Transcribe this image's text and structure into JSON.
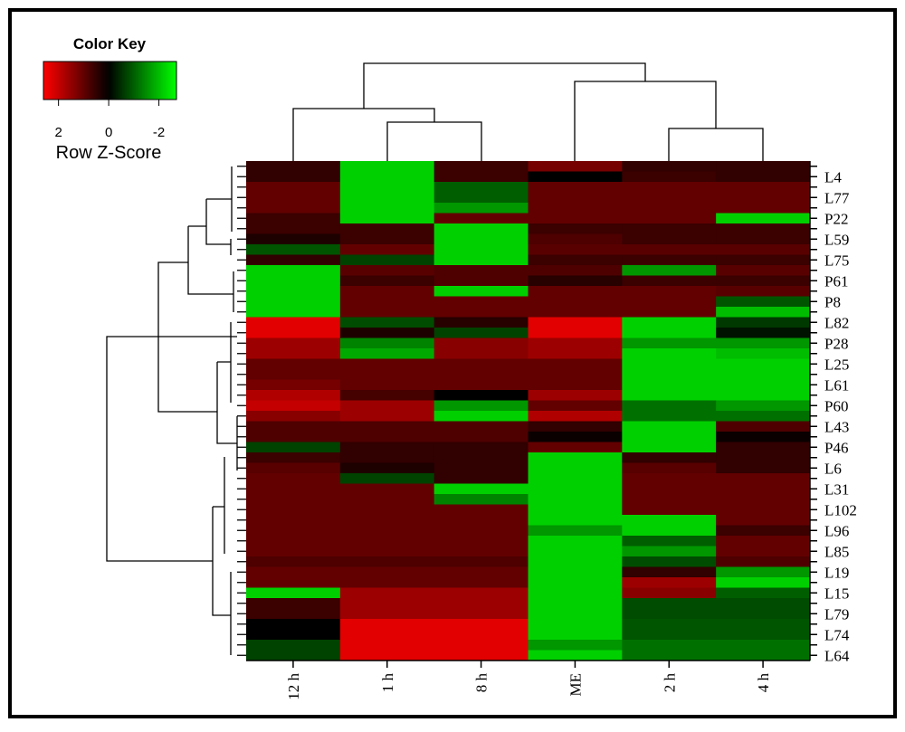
{
  "chart_data": {
    "type": "heatmap",
    "title": "Color Key",
    "key_label": "Row Z-Score",
    "zlim": [
      2.6,
      -2.7
    ],
    "zticks": [
      2,
      0,
      -2
    ],
    "high_color": "#ff0000",
    "mid_color": "#000000",
    "low_color": "#00ff00",
    "columns": [
      "12 h",
      "1 h",
      "8 h",
      "ME",
      "2 h",
      "4 h"
    ],
    "rows": [
      null,
      "L4",
      null,
      "L77",
      null,
      "P22",
      null,
      "L59",
      null,
      "L75",
      null,
      "P61",
      null,
      "P8",
      null,
      "L82",
      null,
      "P28",
      null,
      "L25",
      null,
      "L61",
      null,
      "P60",
      null,
      "L43",
      null,
      "P46",
      null,
      "L6",
      null,
      "L31",
      null,
      "L102",
      null,
      "L96",
      null,
      "L85",
      null,
      "L19",
      null,
      "L15",
      null,
      "L79",
      null,
      "L74",
      null,
      "L64"
    ],
    "values": [
      [
        0.5,
        -2.2,
        0.6,
        1.2,
        0.5,
        0.5
      ],
      [
        0.5,
        -2.2,
        0.6,
        0.0,
        0.6,
        0.5
      ],
      [
        1.0,
        -2.2,
        -1.0,
        1.0,
        1.0,
        1.0
      ],
      [
        1.0,
        -2.2,
        -1.0,
        1.0,
        1.0,
        1.0
      ],
      [
        1.0,
        -2.2,
        -1.6,
        1.0,
        1.0,
        1.0
      ],
      [
        0.6,
        -2.2,
        1.0,
        1.0,
        1.0,
        -2.2
      ],
      [
        0.6,
        0.6,
        -2.2,
        0.6,
        0.6,
        0.6
      ],
      [
        0.3,
        0.6,
        -2.2,
        0.8,
        0.6,
        0.6
      ],
      [
        -0.9,
        1.0,
        -2.2,
        0.9,
        0.9,
        0.9
      ],
      [
        0.5,
        -0.7,
        -2.2,
        0.6,
        0.6,
        0.6
      ],
      [
        -2.2,
        0.9,
        0.8,
        0.8,
        -1.6,
        0.9
      ],
      [
        -2.2,
        0.6,
        0.8,
        0.4,
        0.6,
        0.6
      ],
      [
        -2.2,
        1.0,
        -2.2,
        1.0,
        1.0,
        0.9
      ],
      [
        -2.2,
        1.0,
        1.0,
        1.0,
        1.0,
        -0.9
      ],
      [
        -2.2,
        1.0,
        1.0,
        1.0,
        1.0,
        -2.0
      ],
      [
        2.3,
        -0.8,
        0.4,
        2.3,
        -2.2,
        -0.6
      ],
      [
        2.3,
        0.3,
        -0.7,
        2.3,
        -2.2,
        -0.2
      ],
      [
        1.6,
        -1.4,
        1.4,
        1.6,
        -1.6,
        -1.6
      ],
      [
        1.6,
        -1.8,
        1.4,
        1.6,
        -2.2,
        -2.0
      ],
      [
        1.0,
        1.0,
        1.0,
        1.0,
        -2.2,
        -2.2
      ],
      [
        1.0,
        1.0,
        1.0,
        1.0,
        -2.2,
        -2.2
      ],
      [
        1.2,
        1.0,
        1.0,
        1.0,
        -2.2,
        -2.2
      ],
      [
        1.8,
        0.7,
        0.0,
        1.6,
        -2.2,
        -2.2
      ],
      [
        2.0,
        1.6,
        -1.6,
        1.0,
        -1.2,
        -1.6
      ],
      [
        1.4,
        1.6,
        -2.2,
        1.8,
        -1.2,
        -1.2
      ],
      [
        0.8,
        0.8,
        0.8,
        0.5,
        -2.2,
        0.8
      ],
      [
        0.8,
        0.8,
        0.8,
        0.1,
        -2.2,
        0.1
      ],
      [
        -0.7,
        0.5,
        0.5,
        1.0,
        -2.2,
        0.5
      ],
      [
        0.6,
        0.5,
        0.5,
        -2.2,
        0.5,
        0.5
      ],
      [
        0.9,
        0.3,
        0.5,
        -2.2,
        0.9,
        0.5
      ],
      [
        1.0,
        -0.7,
        0.5,
        -2.2,
        1.0,
        1.0
      ],
      [
        1.0,
        1.0,
        -2.2,
        -2.2,
        1.0,
        1.0
      ],
      [
        1.0,
        1.0,
        -1.4,
        -2.2,
        1.0,
        1.0
      ],
      [
        1.0,
        1.0,
        1.0,
        -2.2,
        1.0,
        1.0
      ],
      [
        1.0,
        1.0,
        1.0,
        -2.2,
        -2.2,
        1.0
      ],
      [
        1.0,
        1.0,
        1.0,
        -1.6,
        -2.2,
        0.6
      ],
      [
        1.0,
        1.0,
        1.0,
        -2.2,
        -1.0,
        1.0
      ],
      [
        1.0,
        1.0,
        1.0,
        -2.2,
        -1.6,
        1.0
      ],
      [
        0.8,
        0.8,
        0.8,
        -2.2,
        -0.8,
        0.8
      ],
      [
        1.0,
        1.0,
        1.0,
        -2.2,
        0.5,
        -1.6
      ],
      [
        1.0,
        1.0,
        1.0,
        -2.2,
        1.6,
        -2.2
      ],
      [
        -2.2,
        1.6,
        1.6,
        -2.2,
        1.4,
        -1.0
      ],
      [
        0.6,
        1.6,
        1.6,
        -2.2,
        -0.8,
        -0.8
      ],
      [
        0.6,
        1.6,
        1.6,
        -2.2,
        -0.8,
        -0.8
      ],
      [
        0.0,
        2.3,
        2.3,
        -2.2,
        -0.9,
        -0.9
      ],
      [
        0.0,
        2.3,
        2.3,
        -2.2,
        -0.9,
        -0.9
      ],
      [
        -0.7,
        2.3,
        2.3,
        -1.6,
        -1.2,
        -1.2
      ],
      [
        -0.7,
        2.3,
        2.3,
        -2.2,
        -1.2,
        -1.2
      ]
    ]
  }
}
